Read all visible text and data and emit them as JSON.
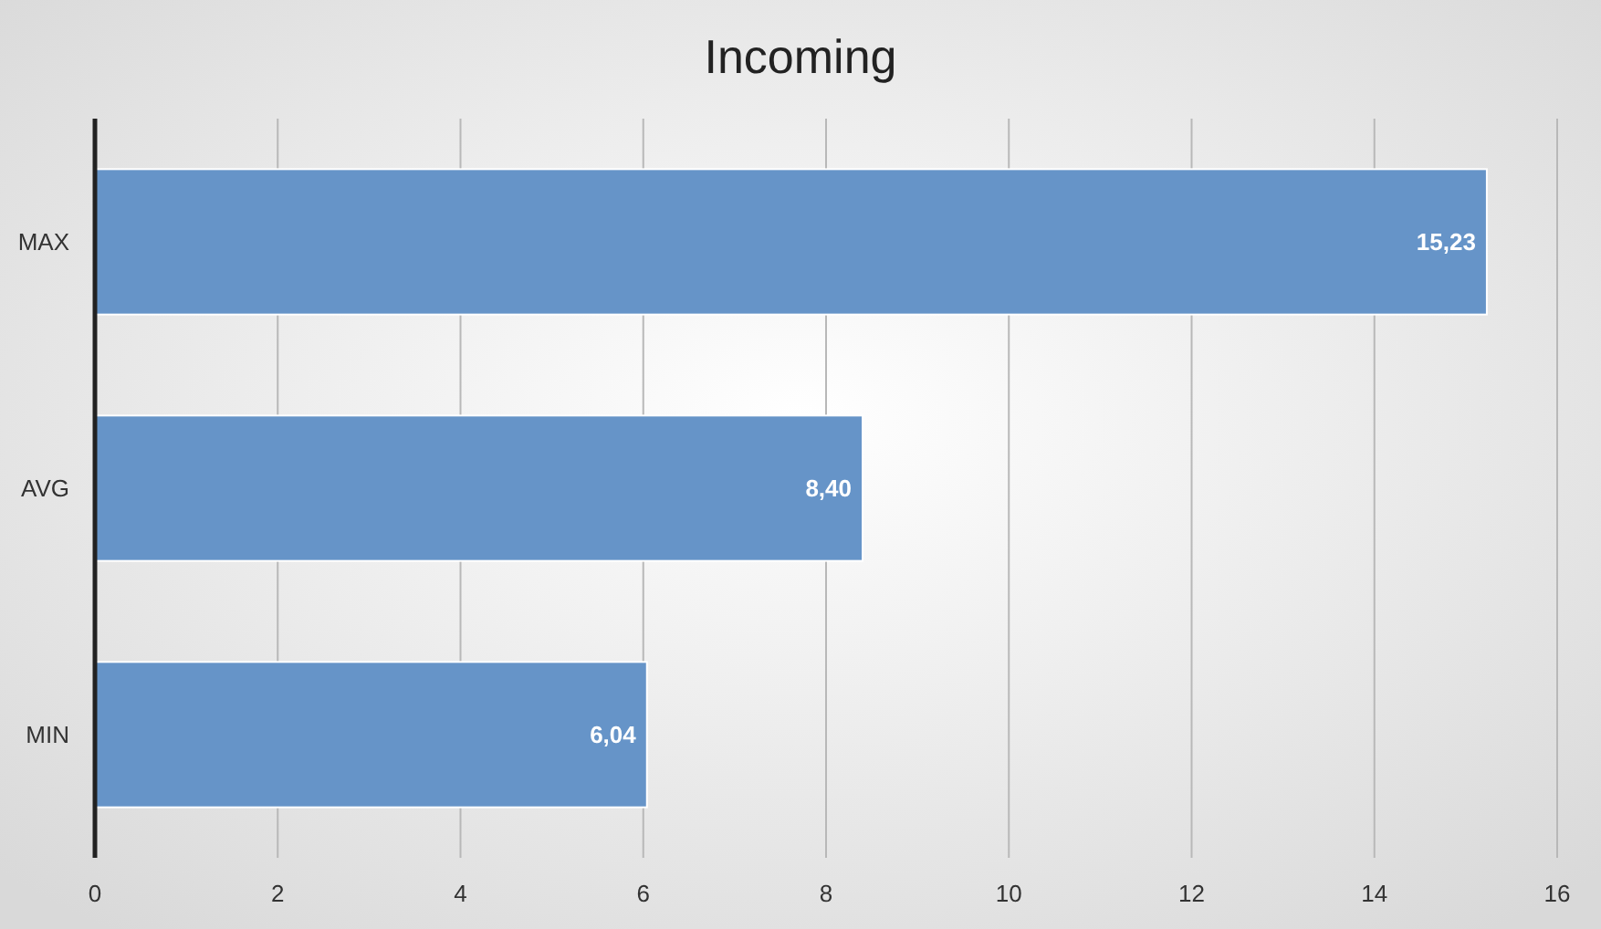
{
  "chart_data": {
    "type": "bar",
    "orientation": "horizontal",
    "title": "Incoming",
    "categories": [
      "MAX",
      "AVG",
      "MIN"
    ],
    "values": [
      15.23,
      8.4,
      6.04
    ],
    "value_labels": [
      "15,23",
      "8,40",
      "6,04"
    ],
    "color": "#6694c8",
    "xlim": [
      0,
      16
    ],
    "xticks": [
      0,
      2,
      4,
      6,
      8,
      10,
      12,
      14,
      16
    ],
    "grid": "x"
  }
}
